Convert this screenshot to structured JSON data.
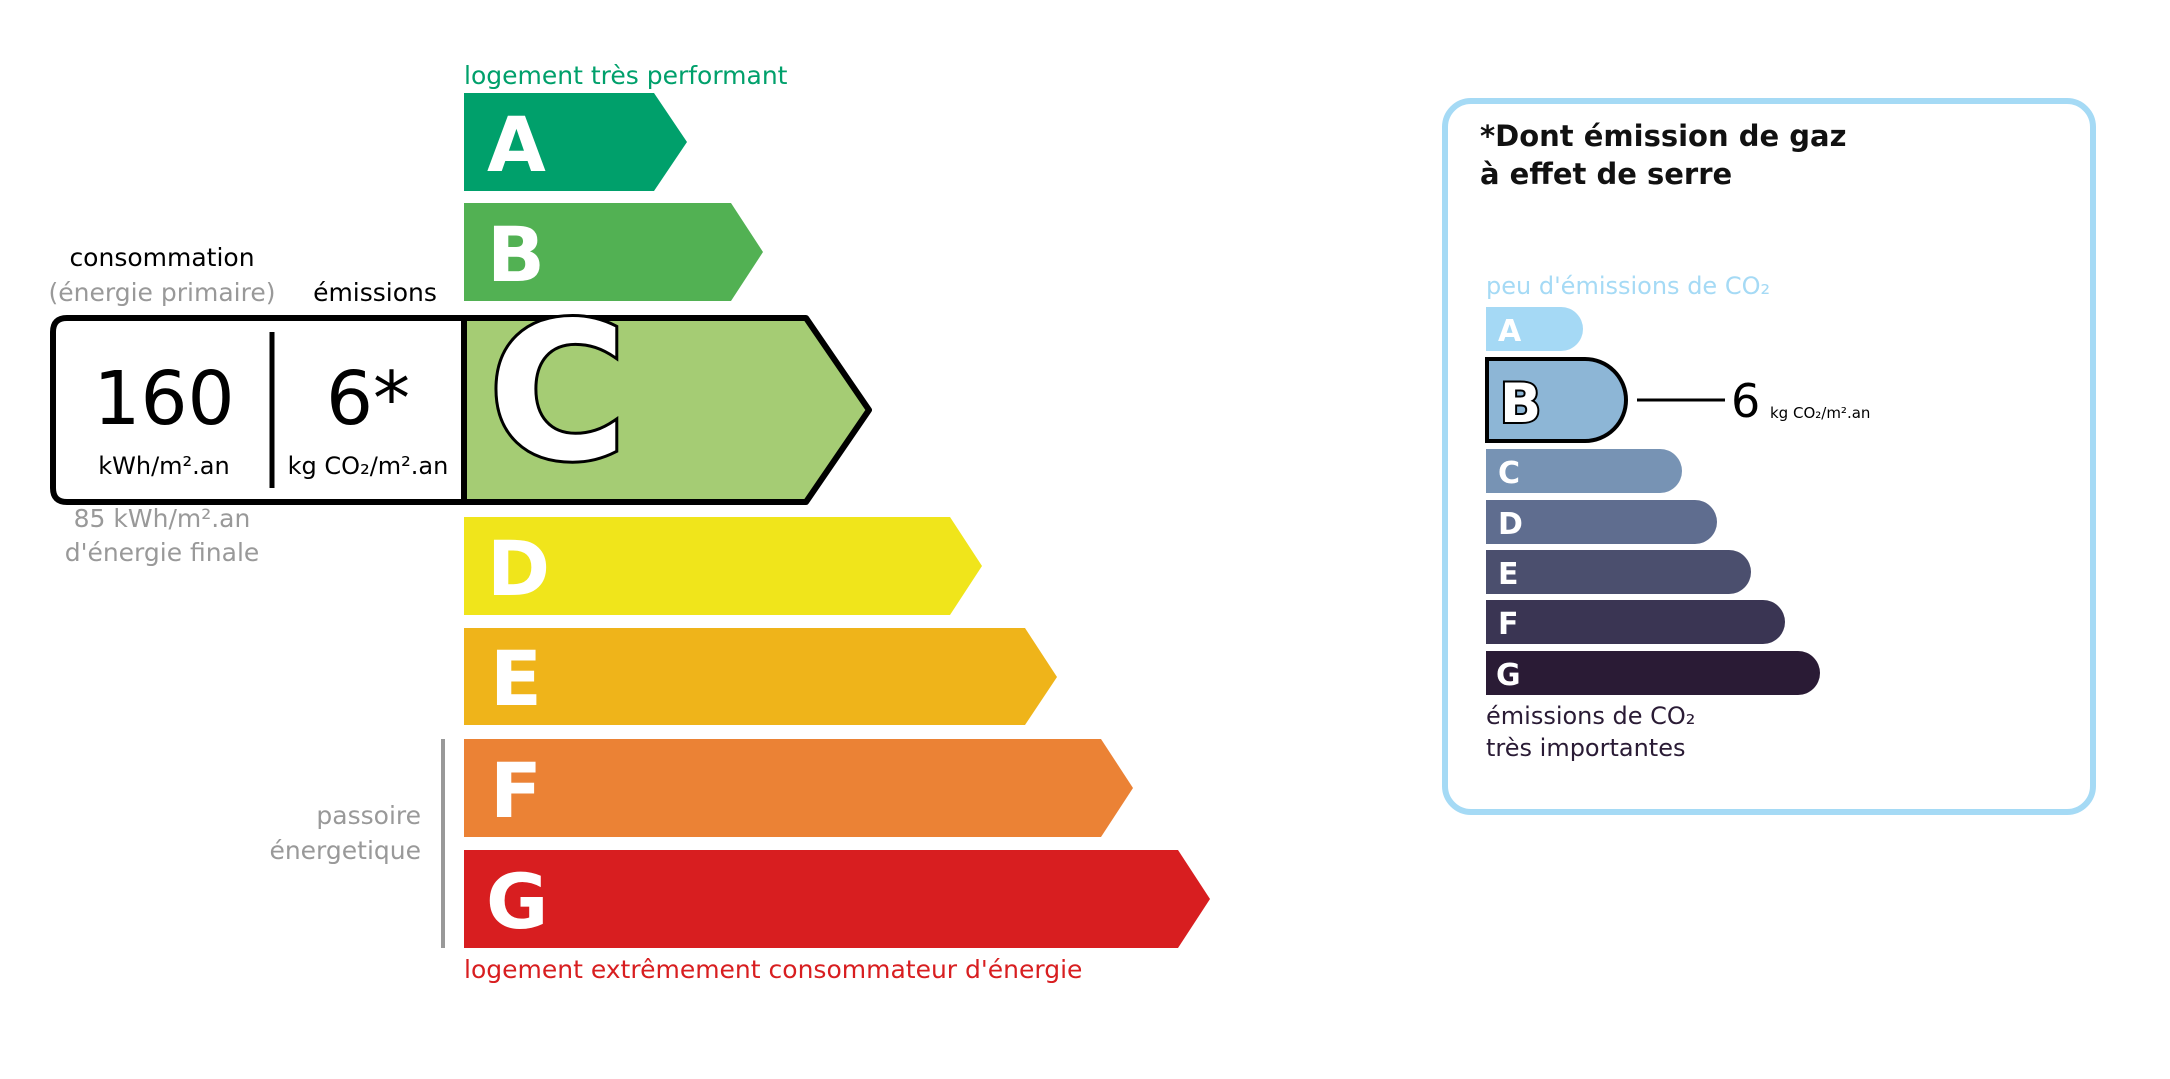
{
  "energy": {
    "top_label": "logement très performant",
    "bottom_label": "logement extrêmement consommateur d'énergie",
    "top_color": "#00a06b",
    "bottom_color": "#d81e20",
    "classes": [
      {
        "letter": "A",
        "color": "#00a06b"
      },
      {
        "letter": "B",
        "color": "#52b153"
      },
      {
        "letter": "C",
        "color": "#a5cc74"
      },
      {
        "letter": "D",
        "color": "#f0e51b"
      },
      {
        "letter": "E",
        "color": "#efb41a"
      },
      {
        "letter": "F",
        "color": "#eb8235"
      },
      {
        "letter": "G",
        "color": "#d81e20"
      }
    ],
    "current_class": "C",
    "consumption_header": "consommation",
    "consumption_subheader": "(énergie primaire)",
    "emissions_header": "émissions",
    "consumption_value": "160",
    "consumption_unit": "kWh/m².an",
    "emissions_value": "6*",
    "emissions_unit": "kg CO₂/m².an",
    "final_energy_value": "85 kWh/m².an",
    "final_energy_label": "d'énergie finale",
    "passoire_line1": "passoire",
    "passoire_line2": "énergetique"
  },
  "ges": {
    "title_line1": "*Dont émission de gaz",
    "title_line2": "à effet de serre",
    "top_label": "peu d'émissions de CO₂",
    "bottom_label_line1": "émissions de CO₂",
    "bottom_label_line2": "très importantes",
    "border_color": "#a5daf5",
    "classes": [
      {
        "letter": "A",
        "color": "#a5d9f5"
      },
      {
        "letter": "B",
        "color": "#8db6d6"
      },
      {
        "letter": "C",
        "color": "#7793b4"
      },
      {
        "letter": "D",
        "color": "#5f6d8f"
      },
      {
        "letter": "E",
        "color": "#4b4f6e"
      },
      {
        "letter": "F",
        "color": "#3a3553"
      },
      {
        "letter": "G",
        "color": "#2a1b35"
      }
    ],
    "current_class": "B",
    "value": "6",
    "unit": "kg CO₂/m².an"
  }
}
